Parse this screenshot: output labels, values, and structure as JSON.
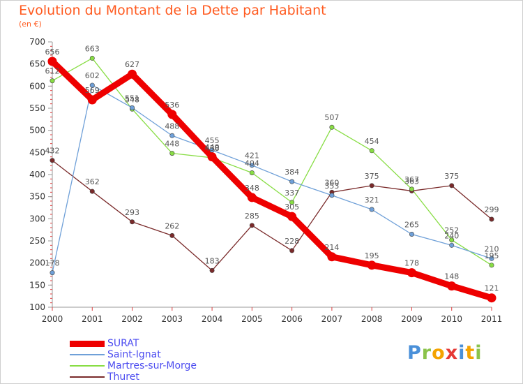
{
  "header": {
    "title": "Evolution du Montant de la Dette par Habitant",
    "unit": "(en €)"
  },
  "logo": {
    "text": "Proxiti",
    "colors": [
      "#4a90d9",
      "#8bc34a",
      "#f4a300",
      "#e53935",
      "#4a90d9",
      "#f4a300",
      "#8bc34a"
    ]
  },
  "chart_data": {
    "type": "line",
    "x": [
      "2000",
      "2001",
      "2002",
      "2003",
      "2004",
      "2005",
      "2006",
      "2007",
      "2008",
      "2009",
      "2010",
      "2011"
    ],
    "ylim": [
      100,
      700
    ],
    "yticks": [
      100,
      150,
      200,
      250,
      300,
      350,
      400,
      450,
      500,
      550,
      600,
      650,
      700
    ],
    "grid": false,
    "legend_position": "bottom-left",
    "series": [
      {
        "name": "SURAT",
        "color": "#ee0000",
        "values": [
          656,
          569,
          627,
          536,
          440,
          348,
          305,
          214,
          195,
          178,
          148,
          121
        ]
      },
      {
        "name": "Saint-Ignat",
        "color": "#6fa0d8",
        "values": [
          178,
          602,
          551,
          488,
          455,
          421,
          384,
          353,
          321,
          265,
          240,
          210
        ]
      },
      {
        "name": "Martres-sur-Morge",
        "color": "#88dd44",
        "values": [
          612,
          663,
          548,
          448,
          438,
          404,
          337,
          507,
          454,
          367,
          252,
          195
        ]
      },
      {
        "name": "Thuret",
        "color": "#7a2a2a",
        "values": [
          432,
          362,
          293,
          262,
          183,
          285,
          228,
          360,
          375,
          363,
          375,
          299
        ]
      }
    ]
  }
}
